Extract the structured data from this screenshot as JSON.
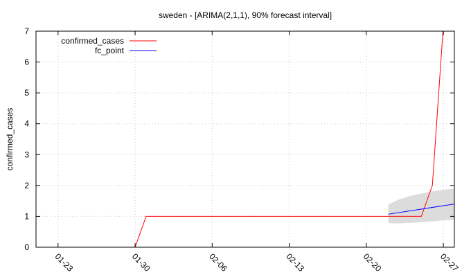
{
  "chart_data": {
    "type": "line",
    "title": "sweden -  [ARIMA(2,1,1), 90% forecast interval]",
    "xlabel": "",
    "ylabel": "confirmed_cases",
    "x_tick_labels": [
      "01-23",
      "01-30",
      "02-06",
      "02-13",
      "02-20",
      "02-27"
    ],
    "x_tick_dates": [
      "2020-01-23",
      "2020-01-30",
      "2020-02-06",
      "2020-02-13",
      "2020-02-20",
      "2020-02-27"
    ],
    "xlim": [
      "2020-01-21",
      "2020-02-28"
    ],
    "ylim": [
      0,
      7
    ],
    "y_ticks": [
      0,
      1,
      2,
      3,
      4,
      5,
      6,
      7
    ],
    "grid": true,
    "legend_position": "top-left",
    "series": [
      {
        "name": "confirmed_cases",
        "color": "#ff0000",
        "points": [
          {
            "x": "2020-01-30",
            "y": 0
          },
          {
            "x": "2020-01-31",
            "y": 1
          },
          {
            "x": "2020-02-25",
            "y": 1
          },
          {
            "x": "2020-02-26",
            "y": 2
          },
          {
            "x": "2020-02-27",
            "y": 7.2
          }
        ]
      },
      {
        "name": "fc_point",
        "color": "#0000ff",
        "points": [
          {
            "x": "2020-02-22",
            "y": 1.07
          },
          {
            "x": "2020-02-28",
            "y": 1.4
          }
        ]
      }
    ],
    "forecast_interval": {
      "color": "#dcdcdc",
      "points": [
        {
          "x": "2020-02-22",
          "lower": 0.78,
          "upper": 1.38
        },
        {
          "x": "2020-02-23",
          "lower": 0.77,
          "upper": 1.55
        },
        {
          "x": "2020-02-24",
          "lower": 0.79,
          "upper": 1.66
        },
        {
          "x": "2020-02-25",
          "lower": 0.81,
          "upper": 1.74
        },
        {
          "x": "2020-02-26",
          "lower": 0.84,
          "upper": 1.81
        },
        {
          "x": "2020-02-27",
          "lower": 0.87,
          "upper": 1.86
        },
        {
          "x": "2020-02-28",
          "lower": 0.89,
          "upper": 1.9
        }
      ]
    }
  }
}
